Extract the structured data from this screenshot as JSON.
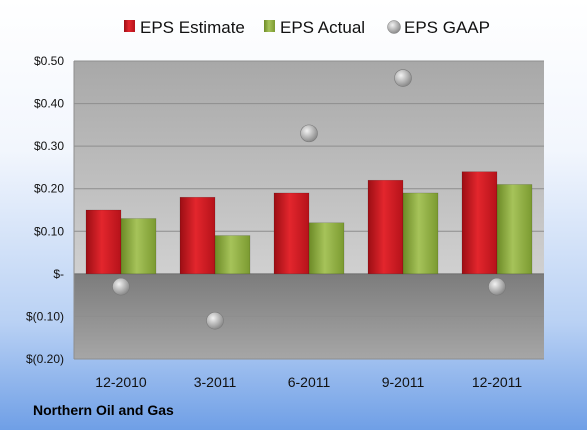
{
  "footer": {
    "company": "Northern Oil and Gas"
  },
  "chart_data": {
    "type": "bar",
    "categories": [
      "12-2010",
      "3-2011",
      "6-2011",
      "9-2011",
      "12-2011"
    ],
    "series": [
      {
        "name": "EPS Estimate",
        "type": "bar",
        "color": "#c8161d",
        "values": [
          0.15,
          0.18,
          0.19,
          0.22,
          0.24
        ]
      },
      {
        "name": "EPS Actual",
        "type": "bar",
        "color": "#8aaa3c",
        "values": [
          0.13,
          0.09,
          0.12,
          0.19,
          0.21
        ]
      },
      {
        "name": "EPS GAAP",
        "type": "scatter",
        "color": "#a6a6a6",
        "values": [
          -0.03,
          -0.11,
          0.33,
          0.46,
          -0.03
        ]
      }
    ],
    "yticks": [
      {
        "value": 0.5,
        "label": "$0.50"
      },
      {
        "value": 0.4,
        "label": "$0.40"
      },
      {
        "value": 0.3,
        "label": "$0.30"
      },
      {
        "value": 0.2,
        "label": "$0.20"
      },
      {
        "value": 0.1,
        "label": "$0.10"
      },
      {
        "value": 0,
        "label": "$-"
      },
      {
        "value": -0.1,
        "label": "$(0.10)"
      },
      {
        "value": -0.2,
        "label": "$(0.20)"
      }
    ],
    "ylim": [
      -0.2,
      0.5
    ],
    "grid": true,
    "legend": "top"
  }
}
